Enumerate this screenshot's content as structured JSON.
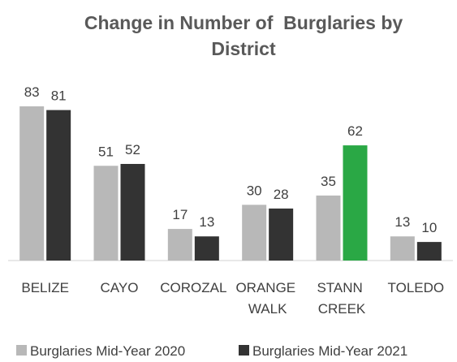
{
  "chart_data": {
    "type": "bar",
    "title": "Change in Number of  Burglaries by District",
    "categories": [
      "BELIZE",
      "CAYO",
      "COROZAL",
      "ORANGE WALK",
      "STANN CREEK",
      "TOLEDO"
    ],
    "series": [
      {
        "name": "Burglaries Mid-Year 2020",
        "color": "#b8b8b8",
        "values": [
          83,
          51,
          17,
          30,
          35,
          13
        ]
      },
      {
        "name": "Burglaries Mid-Year 2021",
        "color": "#333333",
        "values": [
          81,
          52,
          13,
          28,
          62,
          10
        ],
        "colors": [
          "#333333",
          "#333333",
          "#333333",
          "#333333",
          "#2aa845",
          "#333333"
        ]
      }
    ],
    "ylim": [
      0,
      90
    ]
  }
}
